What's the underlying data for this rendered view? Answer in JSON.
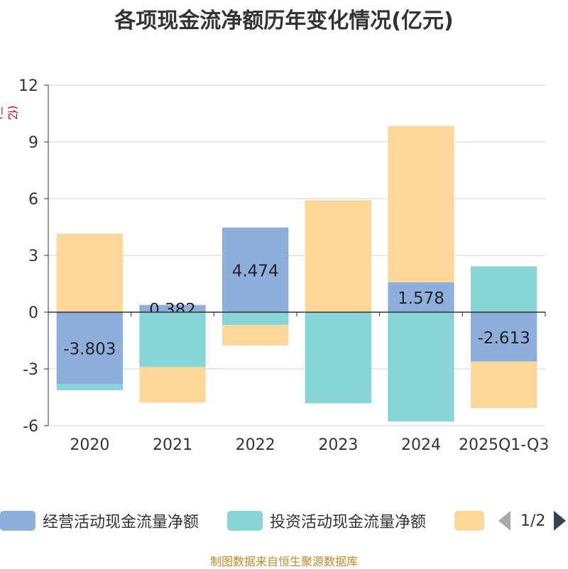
{
  "chart_data": {
    "type": "bar",
    "stacked": true,
    "title": "各项现金流净额历年变化情况(亿元)",
    "unit_label": "(亿元)",
    "categories": [
      "2020",
      "2021",
      "2022",
      "2023",
      "2024",
      "2025Q1-Q3"
    ],
    "ylim": [
      -6,
      12
    ],
    "yticks": [
      12,
      9,
      6,
      3,
      0,
      -3,
      -6
    ],
    "grid": true,
    "series": [
      {
        "name": "经营活动现金流量净额",
        "color": "#8eaedb",
        "values": [
          -3.803,
          0.382,
          4.474,
          0.02,
          1.578,
          -2.613
        ],
        "labels": [
          "-3.803",
          "0.382",
          "4.474",
          "",
          "1.578",
          "-2.613"
        ]
      },
      {
        "name": "投资活动现金流量净额",
        "color": "#88d5d8",
        "values": [
          -0.32,
          -2.9,
          -0.68,
          -4.82,
          -5.78,
          2.42
        ]
      },
      {
        "name": "",
        "color": "#fdd89a",
        "values": [
          4.15,
          -1.88,
          -1.08,
          5.9,
          8.27,
          -2.46
        ]
      }
    ],
    "legend_position": "bottom"
  },
  "legend": {
    "page_text": "1/2"
  },
  "source": "制图数据来自恒生聚源数据库"
}
